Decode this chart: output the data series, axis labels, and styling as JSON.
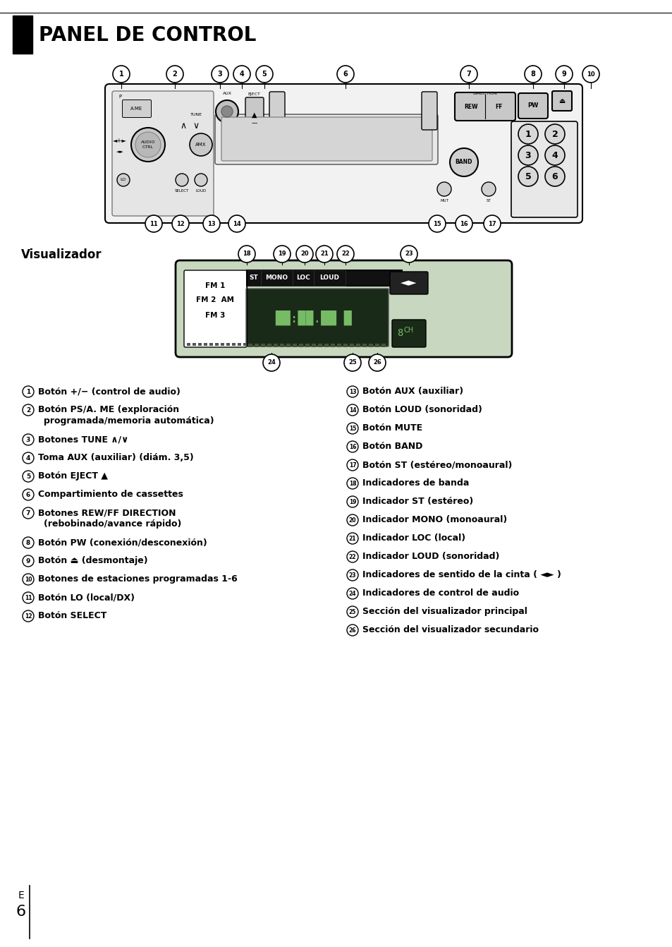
{
  "title": "PANEL DE CONTROL",
  "background_color": "#ffffff",
  "visualizador_label": "Visualizador",
  "left_column_items": [
    {
      "num": "1",
      "text1": "Botón +/− (control de audio)",
      "text2": null
    },
    {
      "num": "2",
      "text1": "Botón PS/A. ME (exploración",
      "text2": "programada/memoria automática)"
    },
    {
      "num": "3",
      "text1": "Botones TUNE ∧/∨",
      "text2": null
    },
    {
      "num": "4",
      "text1": "Toma AUX (auxiliar) (diám. 3,5)",
      "text2": null
    },
    {
      "num": "5",
      "text1": "Botón EJECT ▲",
      "text2": null
    },
    {
      "num": "6",
      "text1": "Compartimiento de cassettes",
      "text2": null
    },
    {
      "num": "7",
      "text1": "Botones REW/FF DIRECTION",
      "text2": "(rebobinado/avance rápido)"
    },
    {
      "num": "8",
      "text1": "Botón PW (conexión/desconexión)",
      "text2": null
    },
    {
      "num": "9",
      "text1": "Botón ⏏ (desmontaje)",
      "text2": null
    },
    {
      "num": "10",
      "text1": "Botones de estaciones programadas 1-6",
      "text2": null
    },
    {
      "num": "11",
      "text1": "Botón LO (local/DX)",
      "text2": null
    },
    {
      "num": "12",
      "text1": "Botón SELECT",
      "text2": null
    }
  ],
  "right_column_items": [
    {
      "num": "13",
      "text1": "Botón AUX (auxiliar)",
      "text2": null
    },
    {
      "num": "14",
      "text1": "Botón LOUD (sonoridad)",
      "text2": null
    },
    {
      "num": "15",
      "text1": "Botón MUTE",
      "text2": null
    },
    {
      "num": "16",
      "text1": "Botón BAND",
      "text2": null
    },
    {
      "num": "17",
      "text1": "Botón ST (estéreo/monoaural)",
      "text2": null
    },
    {
      "num": "18",
      "text1": "Indicadores de banda",
      "text2": null
    },
    {
      "num": "19",
      "text1": "Indicador ST (estéreo)",
      "text2": null
    },
    {
      "num": "20",
      "text1": "Indicador MONO (monoaural)",
      "text2": null
    },
    {
      "num": "21",
      "text1": "Indicador LOC (local)",
      "text2": null
    },
    {
      "num": "22",
      "text1": "Indicador LOUD (sonoridad)",
      "text2": null
    },
    {
      "num": "23",
      "text1": "Indicadores de sentido de la cinta ( ◄► )",
      "text2": null
    },
    {
      "num": "24",
      "text1": "Indicadores de control de audio",
      "text2": null
    },
    {
      "num": "25",
      "text1": "Sección del visualizador principal",
      "text2": null
    },
    {
      "num": "26",
      "text1": "Sección del visualizador secundario",
      "text2": null
    }
  ],
  "font_size_body": 9.0,
  "font_size_title": 20
}
